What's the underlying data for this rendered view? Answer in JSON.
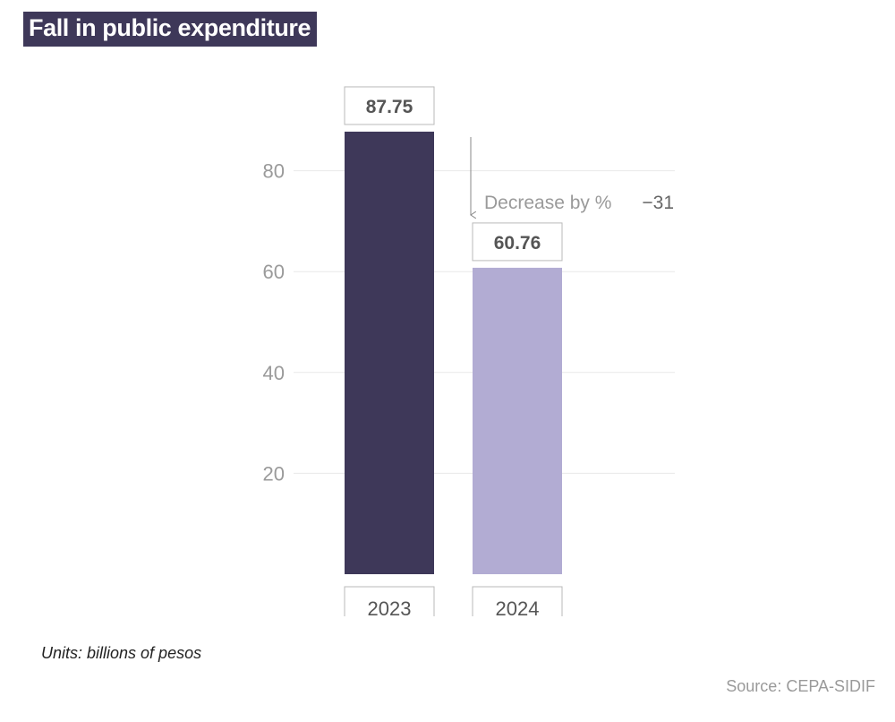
{
  "title": "Fall in public expenditure",
  "units_note": "Units: billions of pesos",
  "source": "Source: CEPA-SIDIF",
  "colors": {
    "title_bg": "#3e3859",
    "bar_2023": "#3e3859",
    "bar_2024": "#b2acd3",
    "grid": "#e9e9e9",
    "tick_text": "#9a9a9a",
    "label_text": "#555555"
  },
  "chart_data": {
    "type": "bar",
    "categories": [
      "2023",
      "2024"
    ],
    "values": [
      87.75,
      60.76
    ],
    "value_labels": [
      "87.75",
      "60.76"
    ],
    "yticks": [
      20,
      40,
      60,
      80
    ],
    "ylim": [
      0,
      87.75
    ],
    "grid": true,
    "annotation": {
      "text": "Decrease by %",
      "value": "−31",
      "arrow": "from 2023 level down to 2024 level"
    }
  }
}
